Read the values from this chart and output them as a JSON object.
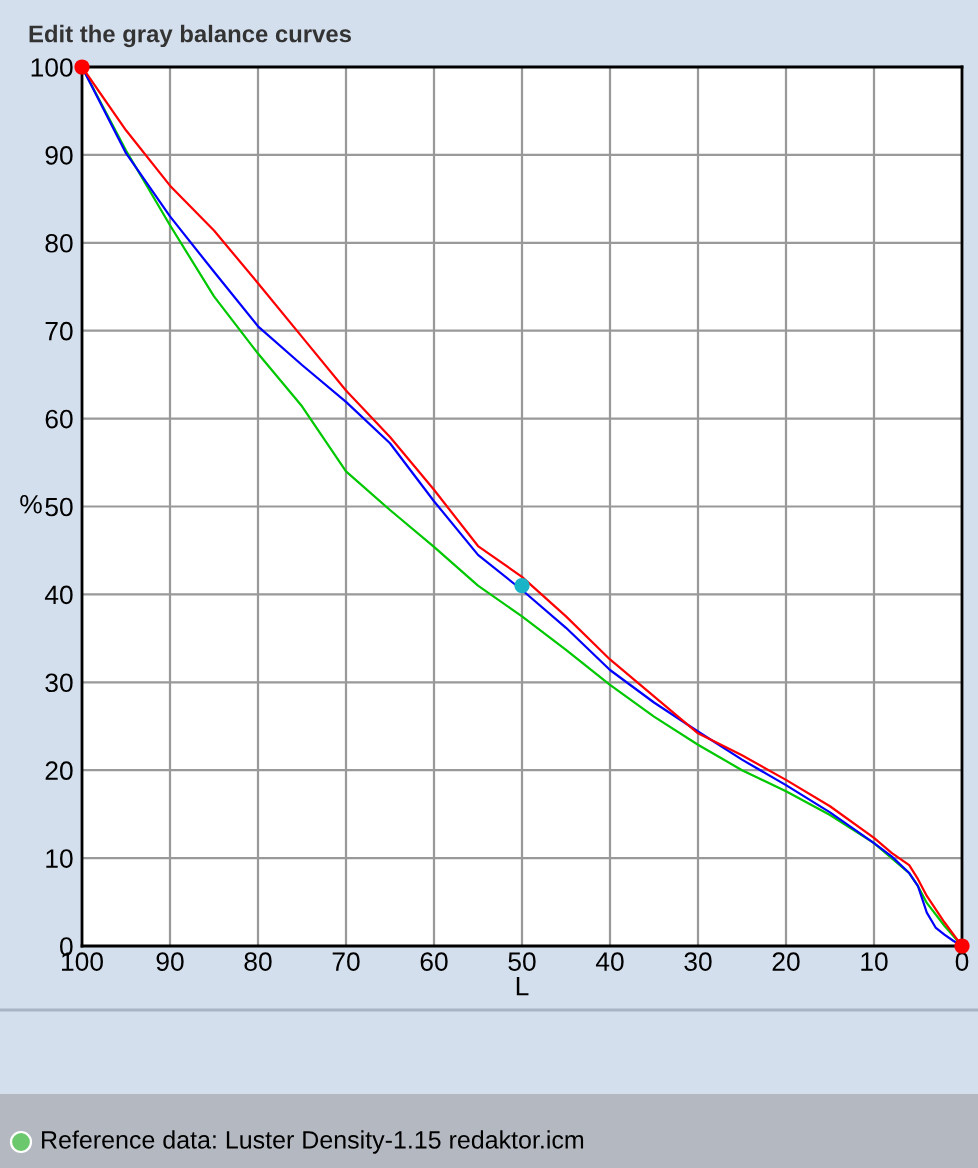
{
  "chart_data": {
    "type": "line",
    "title": "Edit the gray balance curves",
    "xlabel": "L",
    "ylabel": "%",
    "xlim": [
      100,
      0
    ],
    "ylim": [
      0,
      100
    ],
    "xticks": [
      100,
      90,
      80,
      70,
      60,
      50,
      40,
      30,
      20,
      10,
      0
    ],
    "yticks": [
      0,
      10,
      20,
      30,
      40,
      50,
      60,
      70,
      80,
      90,
      100
    ],
    "grid": true,
    "series": [
      {
        "color": "#00c800",
        "x": [
          100,
          95,
          90,
          85,
          80,
          75,
          70,
          65,
          60,
          55,
          50,
          45,
          40,
          35,
          30,
          25,
          20,
          15,
          10,
          8,
          6,
          5,
          4,
          2,
          0
        ],
        "values": [
          100,
          90.5,
          82,
          73.9,
          67.4,
          61.4,
          54,
          49.6,
          45.4,
          41,
          37.5,
          33.7,
          29.7,
          26.1,
          22.9,
          20,
          17.6,
          14.9,
          11.7,
          10,
          8.3,
          6.8,
          4.9,
          2.3,
          0
        ]
      },
      {
        "color": "#0000ff",
        "x": [
          100,
          95,
          90,
          85,
          80,
          75,
          70,
          65,
          60,
          55,
          50,
          45,
          40,
          35,
          30,
          25,
          20,
          15,
          10,
          8,
          6,
          5,
          4,
          3,
          2,
          1,
          0
        ],
        "values": [
          100,
          90.2,
          83,
          76.7,
          70.5,
          66.1,
          61.9,
          57.2,
          50.6,
          44.5,
          40.5,
          36.2,
          31.4,
          27.7,
          24.4,
          21.2,
          18.3,
          15.2,
          11.7,
          10.2,
          8.3,
          6.8,
          3.8,
          2.1,
          1.3,
          0.6,
          0
        ]
      },
      {
        "color": "#ff0000",
        "x": [
          100,
          95,
          90,
          85,
          80,
          75,
          70,
          65,
          60,
          55,
          50,
          45,
          40,
          35,
          30,
          25,
          20,
          15,
          10,
          8,
          6,
          5,
          4,
          2,
          0
        ],
        "values": [
          100,
          92.8,
          86.5,
          81.4,
          75.4,
          69.3,
          63.2,
          57.9,
          51.9,
          45.5,
          42,
          37.5,
          32.6,
          28.4,
          24.2,
          21.7,
          18.9,
          15.9,
          12.3,
          10.6,
          9.2,
          7.6,
          5.7,
          2.7,
          0
        ]
      },
      {
        "type": "scatter",
        "color": "#ff0000",
        "marker": "circle",
        "x": [
          100,
          0
        ],
        "values": [
          100,
          0
        ]
      },
      {
        "type": "scatter",
        "color": "#1ab4c8",
        "marker": "circle",
        "x": [
          50
        ],
        "values": [
          41
        ]
      }
    ],
    "annotations": [
      "Reference data: Luster Density-1.15 redaktor.icm"
    ]
  }
}
